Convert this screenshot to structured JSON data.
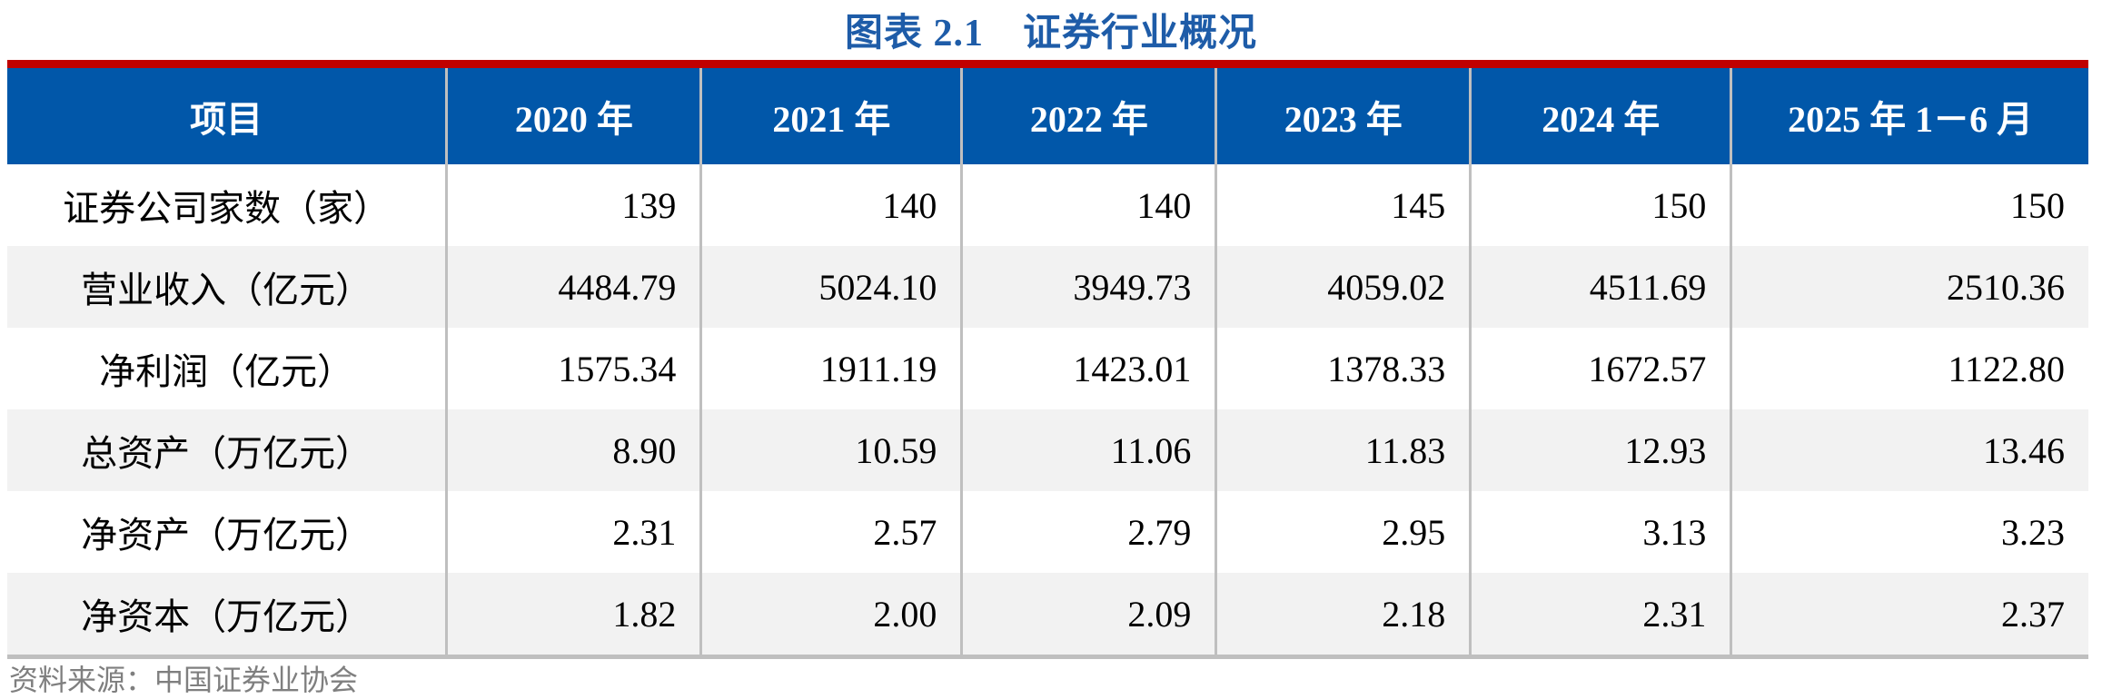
{
  "title": "图表 2.1　证券行业概况",
  "table": {
    "columns": [
      "项目",
      "2020 年",
      "2021 年",
      "2022 年",
      "2023 年",
      "2024 年",
      "2025 年 1－6 月"
    ],
    "rows": [
      {
        "label": "证券公司家数（家）",
        "values": [
          "139",
          "140",
          "140",
          "145",
          "150",
          "150"
        ]
      },
      {
        "label": "营业收入（亿元）",
        "values": [
          "4484.79",
          "5024.10",
          "3949.73",
          "4059.02",
          "4511.69",
          "2510.36"
        ]
      },
      {
        "label": "净利润（亿元）",
        "values": [
          "1575.34",
          "1911.19",
          "1423.01",
          "1378.33",
          "1672.57",
          "1122.80"
        ]
      },
      {
        "label": "总资产（万亿元）",
        "values": [
          "8.90",
          "10.59",
          "11.06",
          "11.83",
          "12.93",
          "13.46"
        ]
      },
      {
        "label": "净资产（万亿元）",
        "values": [
          "2.31",
          "2.57",
          "2.79",
          "2.95",
          "3.13",
          "3.23"
        ]
      },
      {
        "label": "净资本（万亿元）",
        "values": [
          "1.82",
          "2.00",
          "2.09",
          "2.18",
          "2.31",
          "2.37"
        ]
      }
    ]
  },
  "source_note": "资料来源：中国证券业协会",
  "colors": {
    "header-blue": "#0157A9",
    "accent-red": "#C00000",
    "title-blue": "#1E5CA8",
    "separator-gray": "#BFBFBF",
    "stripe-gray": "#F2F2F2",
    "source-gray": "#7F7F7F"
  }
}
